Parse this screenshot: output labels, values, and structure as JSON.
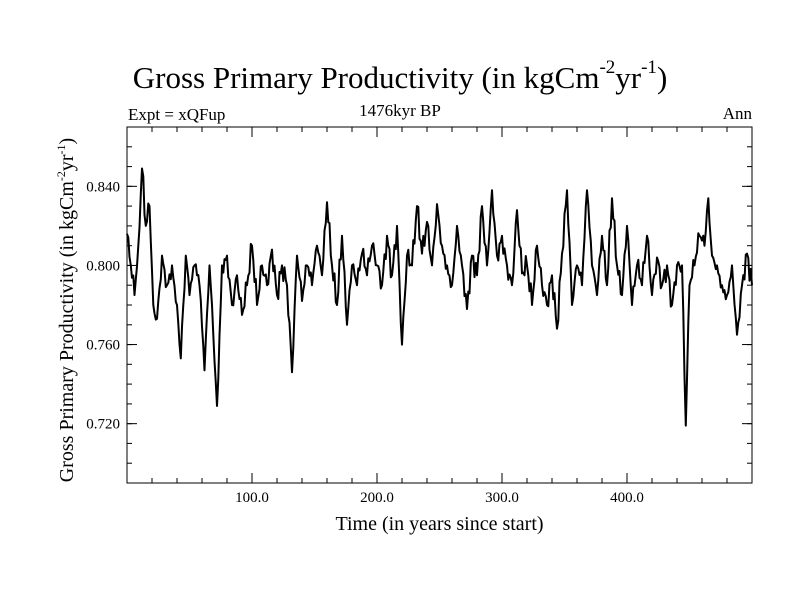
{
  "chart_data": {
    "type": "line",
    "title": "Gross Primary Productivity (in kgCm",
    "title_sup1": "-2",
    "title_mid": "yr",
    "title_sup2": "-1",
    "title_end": ")",
    "subtitle_left": "Expt = xQFup",
    "subtitle_center": "1476kyr BP",
    "subtitle_right": "Ann",
    "xlabel": "Time (in years since start)",
    "ylabel": "Gross Primary Productivity (in kgCm",
    "ylabel_sup1": "-2",
    "ylabel_mid": "yr",
    "ylabel_sup2": "-1",
    "ylabel_end": ")",
    "xlim": [
      0,
      500
    ],
    "ylim": [
      0.69,
      0.87
    ],
    "x_ticks": [
      100,
      200,
      300,
      400
    ],
    "x_tick_labels": [
      "100.0",
      "200.0",
      "300.0",
      "400.0"
    ],
    "y_ticks": [
      0.72,
      0.76,
      0.8,
      0.84
    ],
    "y_tick_labels": [
      "0.720",
      "0.760",
      "0.800",
      "0.840"
    ],
    "grid": false,
    "line_color": "#000000",
    "series": [
      {
        "name": "Ann",
        "keypoints": [
          [
            0,
            0.816
          ],
          [
            3,
            0.8
          ],
          [
            6,
            0.785
          ],
          [
            9,
            0.81
          ],
          [
            12,
            0.849
          ],
          [
            15,
            0.82
          ],
          [
            18,
            0.83
          ],
          [
            21,
            0.78
          ],
          [
            24,
            0.773
          ],
          [
            28,
            0.805
          ],
          [
            32,
            0.79
          ],
          [
            36,
            0.8
          ],
          [
            40,
            0.78
          ],
          [
            43,
            0.753
          ],
          [
            47,
            0.805
          ],
          [
            50,
            0.785
          ],
          [
            54,
            0.8
          ],
          [
            58,
            0.79
          ],
          [
            62,
            0.747
          ],
          [
            66,
            0.8
          ],
          [
            69,
            0.765
          ],
          [
            72,
            0.729
          ],
          [
            76,
            0.8
          ],
          [
            80,
            0.805
          ],
          [
            84,
            0.78
          ],
          [
            88,
            0.795
          ],
          [
            92,
            0.775
          ],
          [
            96,
            0.79
          ],
          [
            100,
            0.81
          ],
          [
            104,
            0.78
          ],
          [
            108,
            0.8
          ],
          [
            112,
            0.79
          ],
          [
            116,
            0.808
          ],
          [
            120,
            0.785
          ],
          [
            124,
            0.8
          ],
          [
            128,
            0.79
          ],
          [
            132,
            0.746
          ],
          [
            136,
            0.805
          ],
          [
            140,
            0.782
          ],
          [
            144,
            0.8
          ],
          [
            148,
            0.79
          ],
          [
            152,
            0.81
          ],
          [
            156,
            0.795
          ],
          [
            160,
            0.832
          ],
          [
            164,
            0.8
          ],
          [
            168,
            0.78
          ],
          [
            172,
            0.815
          ],
          [
            176,
            0.77
          ],
          [
            180,
            0.8
          ],
          [
            184,
            0.79
          ],
          [
            188,
            0.806
          ],
          [
            192,
            0.795
          ],
          [
            196,
            0.81
          ],
          [
            200,
            0.8
          ],
          [
            204,
            0.79
          ],
          [
            208,
            0.815
          ],
          [
            212,
            0.795
          ],
          [
            216,
            0.82
          ],
          [
            220,
            0.76
          ],
          [
            224,
            0.805
          ],
          [
            228,
            0.8
          ],
          [
            232,
            0.83
          ],
          [
            236,
            0.806
          ],
          [
            240,
            0.822
          ],
          [
            244,
            0.8
          ],
          [
            248,
            0.831
          ],
          [
            252,
            0.81
          ],
          [
            256,
            0.8
          ],
          [
            260,
            0.79
          ],
          [
            264,
            0.82
          ],
          [
            268,
            0.8
          ],
          [
            272,
            0.778
          ],
          [
            276,
            0.805
          ],
          [
            280,
            0.795
          ],
          [
            284,
            0.83
          ],
          [
            288,
            0.8
          ],
          [
            292,
            0.838
          ],
          [
            296,
            0.805
          ],
          [
            300,
            0.815
          ],
          [
            304,
            0.8
          ],
          [
            308,
            0.79
          ],
          [
            312,
            0.828
          ],
          [
            316,
            0.796
          ],
          [
            320,
            0.8
          ],
          [
            324,
            0.78
          ],
          [
            328,
            0.81
          ],
          [
            332,
            0.79
          ],
          [
            336,
            0.78
          ],
          [
            340,
            0.795
          ],
          [
            344,
            0.768
          ],
          [
            348,
            0.806
          ],
          [
            352,
            0.838
          ],
          [
            356,
            0.78
          ],
          [
            360,
            0.8
          ],
          [
            364,
            0.79
          ],
          [
            368,
            0.838
          ],
          [
            372,
            0.8
          ],
          [
            376,
            0.785
          ],
          [
            380,
            0.815
          ],
          [
            384,
            0.79
          ],
          [
            388,
            0.834
          ],
          [
            392,
            0.8
          ],
          [
            396,
            0.785
          ],
          [
            400,
            0.82
          ],
          [
            404,
            0.78
          ],
          [
            408,
            0.8
          ],
          [
            412,
            0.79
          ],
          [
            416,
            0.815
          ],
          [
            420,
            0.785
          ],
          [
            424,
            0.804
          ],
          [
            428,
            0.79
          ],
          [
            432,
            0.8
          ],
          [
            436,
            0.78
          ],
          [
            440,
            0.8
          ],
          [
            444,
            0.8
          ],
          [
            447,
            0.719
          ],
          [
            450,
            0.79
          ],
          [
            454,
            0.8
          ],
          [
            458,
            0.815
          ],
          [
            462,
            0.81
          ],
          [
            465,
            0.834
          ],
          [
            468,
            0.805
          ],
          [
            472,
            0.8
          ],
          [
            476,
            0.79
          ],
          [
            480,
            0.785
          ],
          [
            484,
            0.8
          ],
          [
            488,
            0.765
          ],
          [
            492,
            0.79
          ],
          [
            496,
            0.806
          ],
          [
            500,
            0.79
          ]
        ]
      }
    ]
  }
}
